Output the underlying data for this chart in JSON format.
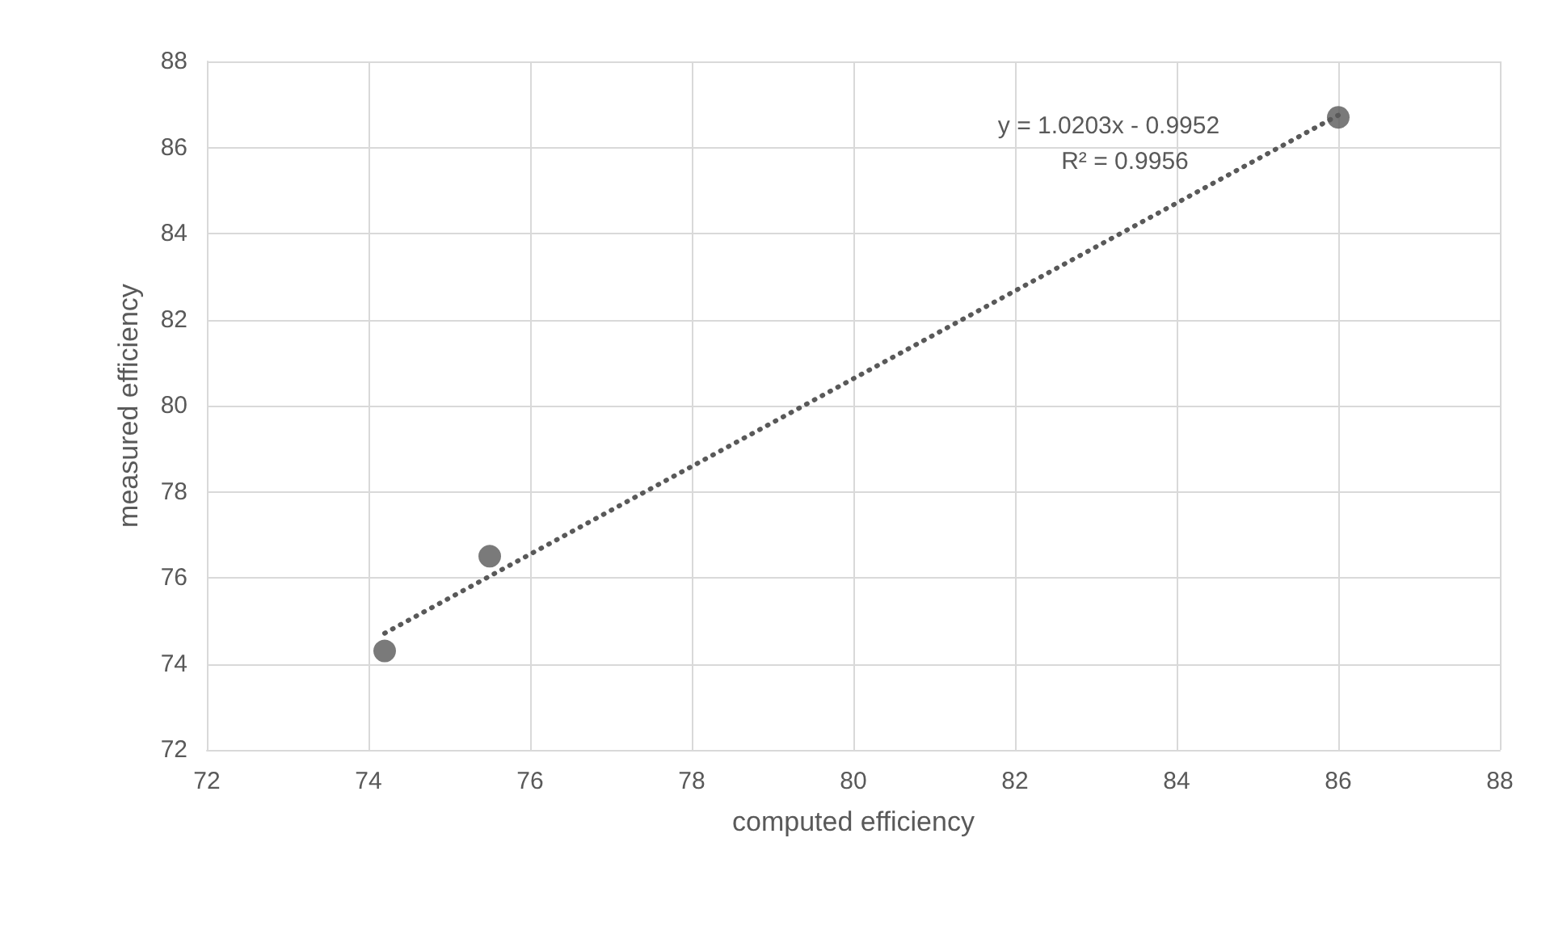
{
  "chart_data": {
    "type": "scatter",
    "xlabel": "computed efficiency",
    "ylabel": "measured efficiency",
    "xlim": [
      72,
      88
    ],
    "xticks": [
      72,
      74,
      76,
      78,
      80,
      82,
      84,
      86,
      88
    ],
    "ylim": [
      72,
      88
    ],
    "yticks": [
      72,
      74,
      76,
      78,
      80,
      82,
      84,
      86,
      88
    ],
    "grid": true,
    "series": [
      {
        "color": "#595959",
        "marker": "circle",
        "x": [
          74.2,
          75.5,
          86
        ],
        "values": [
          74.3,
          76.5,
          86.7
        ]
      },
      {
        "type": "line",
        "color": "#595959",
        "line_style": "dotted",
        "marker": "none",
        "x": [
          74.2,
          86
        ],
        "values": [
          74.71,
          86.75
        ]
      }
    ],
    "annotations": [
      "y = 1.0203x - 0.9952",
      "R² = 0.9956"
    ]
  }
}
